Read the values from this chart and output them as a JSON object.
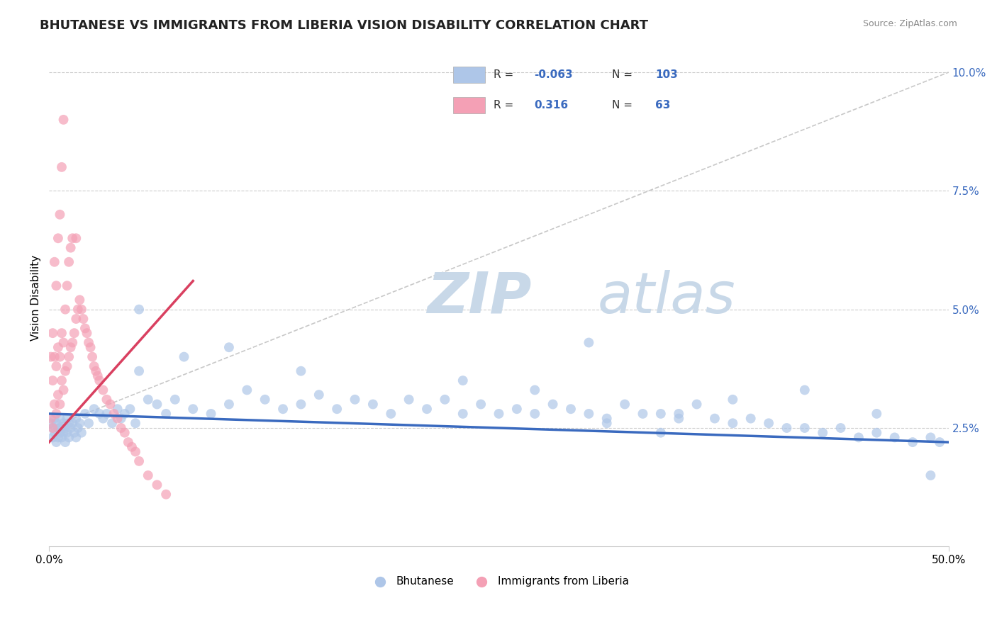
{
  "title": "BHUTANESE VS IMMIGRANTS FROM LIBERIA VISION DISABILITY CORRELATION CHART",
  "source_text": "Source: ZipAtlas.com",
  "ylabel": "Vision Disability",
  "xlim": [
    0.0,
    0.5
  ],
  "ylim": [
    0.0,
    0.105
  ],
  "yticks": [
    0.0,
    0.025,
    0.05,
    0.075,
    0.1
  ],
  "ytick_labels": [
    "",
    "2.5%",
    "5.0%",
    "7.5%",
    "10.0%"
  ],
  "blue_color": "#aec6e8",
  "pink_color": "#f4a0b5",
  "trend_blue": "#3a6abf",
  "trend_pink": "#d94060",
  "ref_line_color": "#c8c8c8",
  "watermark_color": "#ccd8e8",
  "background": "#ffffff",
  "blue_scatter_x": [
    0.001,
    0.002,
    0.002,
    0.003,
    0.003,
    0.004,
    0.004,
    0.005,
    0.005,
    0.006,
    0.006,
    0.007,
    0.007,
    0.008,
    0.008,
    0.009,
    0.009,
    0.01,
    0.01,
    0.011,
    0.011,
    0.012,
    0.013,
    0.014,
    0.015,
    0.015,
    0.016,
    0.017,
    0.018,
    0.02,
    0.022,
    0.025,
    0.028,
    0.03,
    0.032,
    0.035,
    0.038,
    0.04,
    0.042,
    0.045,
    0.048,
    0.05,
    0.055,
    0.06,
    0.065,
    0.07,
    0.08,
    0.09,
    0.1,
    0.11,
    0.12,
    0.13,
    0.14,
    0.15,
    0.16,
    0.17,
    0.18,
    0.19,
    0.2,
    0.21,
    0.22,
    0.23,
    0.24,
    0.25,
    0.26,
    0.27,
    0.28,
    0.29,
    0.3,
    0.31,
    0.32,
    0.33,
    0.34,
    0.35,
    0.36,
    0.37,
    0.38,
    0.39,
    0.4,
    0.41,
    0.42,
    0.43,
    0.44,
    0.45,
    0.46,
    0.47,
    0.48,
    0.49,
    0.495,
    0.27,
    0.31,
    0.35,
    0.38,
    0.42,
    0.46,
    0.05,
    0.075,
    0.1,
    0.14,
    0.3,
    0.23,
    0.49,
    0.34
  ],
  "blue_scatter_y": [
    0.026,
    0.025,
    0.023,
    0.027,
    0.024,
    0.026,
    0.022,
    0.025,
    0.023,
    0.027,
    0.024,
    0.025,
    0.023,
    0.026,
    0.024,
    0.025,
    0.022,
    0.027,
    0.024,
    0.026,
    0.023,
    0.025,
    0.026,
    0.024,
    0.027,
    0.023,
    0.025,
    0.026,
    0.024,
    0.028,
    0.026,
    0.029,
    0.028,
    0.027,
    0.028,
    0.026,
    0.029,
    0.027,
    0.028,
    0.029,
    0.026,
    0.037,
    0.031,
    0.03,
    0.028,
    0.031,
    0.029,
    0.028,
    0.03,
    0.033,
    0.031,
    0.029,
    0.03,
    0.032,
    0.029,
    0.031,
    0.03,
    0.028,
    0.031,
    0.029,
    0.031,
    0.028,
    0.03,
    0.028,
    0.029,
    0.028,
    0.03,
    0.029,
    0.028,
    0.027,
    0.03,
    0.028,
    0.028,
    0.027,
    0.03,
    0.027,
    0.026,
    0.027,
    0.026,
    0.025,
    0.025,
    0.024,
    0.025,
    0.023,
    0.024,
    0.023,
    0.022,
    0.023,
    0.022,
    0.033,
    0.026,
    0.028,
    0.031,
    0.033,
    0.028,
    0.05,
    0.04,
    0.042,
    0.037,
    0.043,
    0.035,
    0.015,
    0.024
  ],
  "pink_scatter_x": [
    0.001,
    0.001,
    0.002,
    0.002,
    0.002,
    0.003,
    0.003,
    0.003,
    0.004,
    0.004,
    0.004,
    0.005,
    0.005,
    0.005,
    0.006,
    0.006,
    0.006,
    0.007,
    0.007,
    0.007,
    0.008,
    0.008,
    0.008,
    0.009,
    0.009,
    0.01,
    0.01,
    0.011,
    0.011,
    0.012,
    0.012,
    0.013,
    0.013,
    0.014,
    0.015,
    0.015,
    0.016,
    0.017,
    0.018,
    0.019,
    0.02,
    0.021,
    0.022,
    0.023,
    0.024,
    0.025,
    0.026,
    0.027,
    0.028,
    0.03,
    0.032,
    0.034,
    0.036,
    0.038,
    0.04,
    0.042,
    0.044,
    0.046,
    0.048,
    0.05,
    0.055,
    0.06,
    0.065
  ],
  "pink_scatter_y": [
    0.027,
    0.04,
    0.025,
    0.035,
    0.045,
    0.03,
    0.04,
    0.06,
    0.028,
    0.038,
    0.055,
    0.032,
    0.042,
    0.065,
    0.03,
    0.04,
    0.07,
    0.035,
    0.045,
    0.08,
    0.033,
    0.043,
    0.09,
    0.037,
    0.05,
    0.038,
    0.055,
    0.04,
    0.06,
    0.042,
    0.063,
    0.043,
    0.065,
    0.045,
    0.048,
    0.065,
    0.05,
    0.052,
    0.05,
    0.048,
    0.046,
    0.045,
    0.043,
    0.042,
    0.04,
    0.038,
    0.037,
    0.036,
    0.035,
    0.033,
    0.031,
    0.03,
    0.028,
    0.027,
    0.025,
    0.024,
    0.022,
    0.021,
    0.02,
    0.018,
    0.015,
    0.013,
    0.011
  ],
  "title_fontsize": 13,
  "axis_label_fontsize": 11,
  "tick_fontsize": 11
}
